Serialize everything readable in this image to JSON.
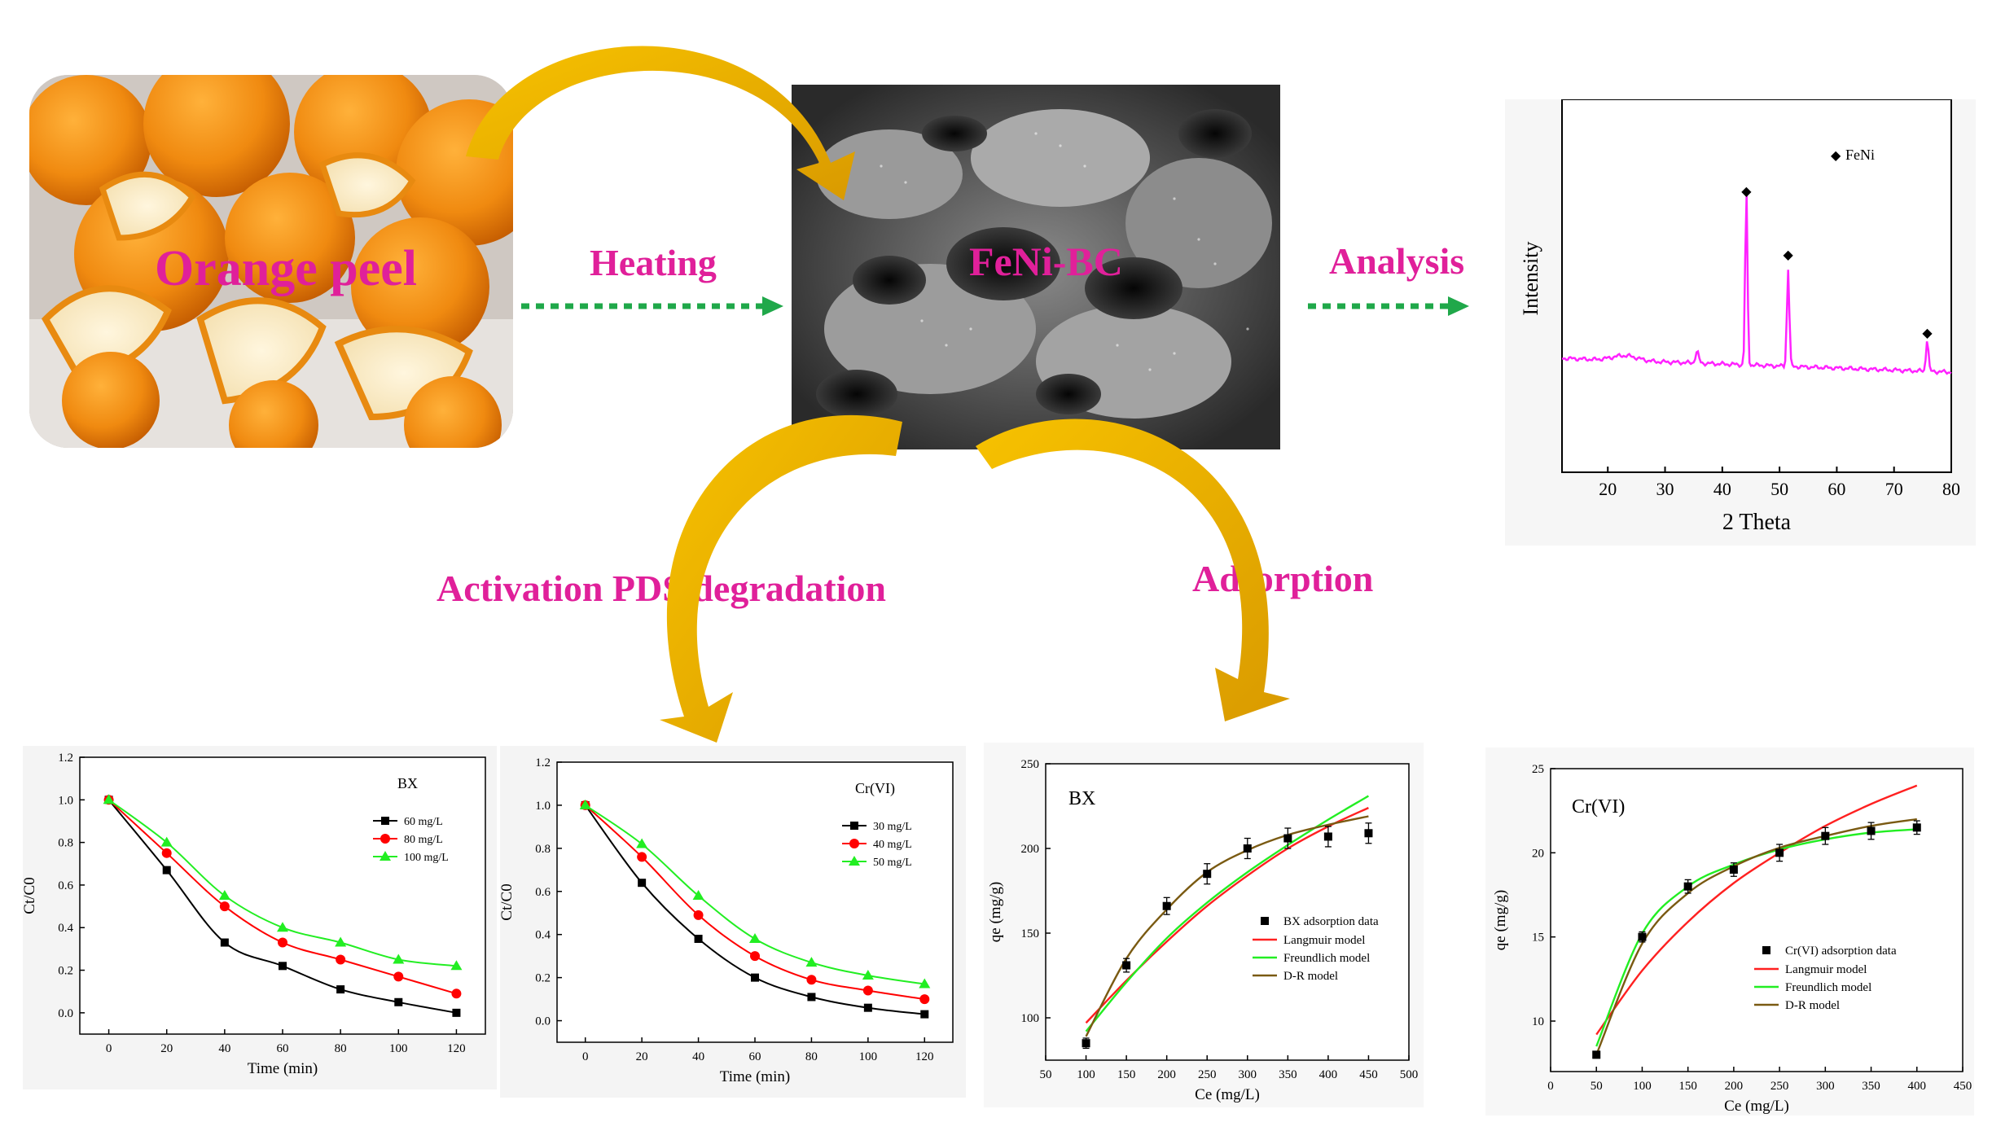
{
  "labels": {
    "orange_peel": "Orange peel",
    "heating": "Heating",
    "material": "FeNi-BC",
    "analysis": "Analysis",
    "activation": "Activation PDS degradation",
    "adsorption": "Adsorption"
  },
  "colors": {
    "label": "#e0209a",
    "arrow_arc": "#f0b400",
    "dotted_arrow": "#20a84a",
    "xrd_line": "#ff22ff"
  },
  "xrd": {
    "legend": "FeNi",
    "ylabel": "Intensity",
    "xlabel": "2 Theta",
    "xticks": [
      "20",
      "30",
      "40",
      "50",
      "60",
      "70",
      "80"
    ]
  },
  "chart_data": [
    {
      "type": "line",
      "id": "xrd",
      "xlabel": "2 Theta",
      "ylabel": "Intensity",
      "xlim": [
        12,
        80
      ],
      "peaks": [
        {
          "x": 44.2,
          "marker": "◆"
        },
        {
          "x": 51.5,
          "marker": "◆"
        },
        {
          "x": 75.8,
          "marker": "◆"
        }
      ],
      "legend": [
        "FeNi"
      ]
    },
    {
      "type": "line",
      "id": "bx-degradation",
      "title": "BX",
      "xlabel": "Time (min)",
      "ylabel": "Ct/C0",
      "xlim": [
        -10,
        130
      ],
      "ylim": [
        -0.1,
        1.2
      ],
      "xticks": [
        "0",
        "20",
        "40",
        "60",
        "80",
        "100",
        "120"
      ],
      "yticks": [
        "0.0",
        "0.2",
        "0.4",
        "0.6",
        "0.8",
        "1.0",
        "1.2"
      ],
      "x": [
        0,
        20,
        40,
        60,
        80,
        100,
        120
      ],
      "series": [
        {
          "name": "60 mg/L",
          "color": "#000000",
          "marker": "square",
          "values": [
            1.0,
            0.67,
            0.33,
            0.22,
            0.11,
            0.05,
            0.0
          ]
        },
        {
          "name": "80 mg/L",
          "color": "#ff0000",
          "marker": "circle",
          "values": [
            1.0,
            0.75,
            0.5,
            0.33,
            0.25,
            0.17,
            0.09
          ]
        },
        {
          "name": "100 mg/L",
          "color": "#22ee22",
          "marker": "triangle",
          "values": [
            1.0,
            0.8,
            0.55,
            0.4,
            0.33,
            0.25,
            0.22
          ]
        }
      ]
    },
    {
      "type": "line",
      "id": "cr-degradation",
      "title": "Cr(VI)",
      "xlabel": "Time (min)",
      "ylabel": "Ct/C0",
      "xlim": [
        -10,
        130
      ],
      "ylim": [
        -0.1,
        1.2
      ],
      "xticks": [
        "0",
        "20",
        "40",
        "60",
        "80",
        "100",
        "120"
      ],
      "yticks": [
        "0.0",
        "0.2",
        "0.4",
        "0.6",
        "0.8",
        "1.0",
        "1.2"
      ],
      "x": [
        0,
        20,
        40,
        60,
        80,
        100,
        120
      ],
      "series": [
        {
          "name": "30 mg/L",
          "color": "#000000",
          "marker": "square",
          "values": [
            1.0,
            0.64,
            0.38,
            0.2,
            0.11,
            0.06,
            0.03
          ]
        },
        {
          "name": "40 mg/L",
          "color": "#ff0000",
          "marker": "circle",
          "values": [
            1.0,
            0.76,
            0.49,
            0.3,
            0.19,
            0.14,
            0.1
          ]
        },
        {
          "name": "50 mg/L",
          "color": "#22ee22",
          "marker": "triangle",
          "values": [
            1.0,
            0.82,
            0.58,
            0.38,
            0.27,
            0.21,
            0.17
          ]
        }
      ]
    },
    {
      "type": "scatter",
      "id": "bx-adsorption",
      "title": "BX",
      "xlabel": "Ce (mg/L)",
      "ylabel": "qe (mg/g)",
      "xlim": [
        50,
        500
      ],
      "ylim": [
        75,
        250
      ],
      "xticks": [
        "50",
        "100",
        "150",
        "200",
        "250",
        "300",
        "350",
        "400",
        "450",
        "500"
      ],
      "yticks": [
        "100",
        "150",
        "200",
        "250"
      ],
      "points": {
        "name": "BX adsorption data",
        "x": [
          100,
          150,
          200,
          250,
          300,
          350,
          400,
          450
        ],
        "y": [
          85,
          131,
          166,
          185,
          200,
          206,
          207,
          209
        ],
        "err": [
          3,
          4,
          5,
          6,
          6,
          6,
          6,
          6
        ]
      },
      "models": [
        {
          "name": "Langmuir model",
          "color": "#ff2020",
          "x": [
            100,
            150,
            200,
            250,
            300,
            350,
            400,
            450
          ],
          "y": [
            97,
            122,
            145,
            166,
            184,
            200,
            213,
            224
          ]
        },
        {
          "name": "Freundlich model",
          "color": "#22ee22",
          "x": [
            100,
            150,
            200,
            250,
            300,
            350,
            400,
            450
          ],
          "y": [
            92,
            121,
            147,
            168,
            186,
            202,
            217,
            231
          ]
        },
        {
          "name": "D-R model",
          "color": "#7a5a12",
          "x": [
            100,
            150,
            200,
            250,
            300,
            350,
            400,
            450
          ],
          "y": [
            89,
            135,
            164,
            186,
            199,
            208,
            214,
            219
          ]
        }
      ]
    },
    {
      "type": "scatter",
      "id": "cr-adsorption",
      "title": "Cr(VI)",
      "xlabel": "Ce (mg/L)",
      "ylabel": "qe (mg/g)",
      "xlim": [
        0,
        450
      ],
      "ylim": [
        7,
        25
      ],
      "xticks": [
        "0",
        "50",
        "100",
        "150",
        "200",
        "250",
        "300",
        "350",
        "400",
        "450"
      ],
      "yticks": [
        "10",
        "15",
        "20",
        "25"
      ],
      "points": {
        "name": "Cr(VI) adsorption data",
        "x": [
          50,
          100,
          150,
          200,
          250,
          300,
          350,
          400
        ],
        "y": [
          8.0,
          15.0,
          18.0,
          19.0,
          20.0,
          21.0,
          21.3,
          21.5
        ],
        "err": [
          0.2,
          0.3,
          0.4,
          0.4,
          0.5,
          0.5,
          0.5,
          0.4
        ]
      },
      "models": [
        {
          "name": "Langmuir model",
          "color": "#ff2020",
          "x": [
            50,
            100,
            150,
            200,
            250,
            300,
            350,
            400
          ],
          "y": [
            9.2,
            13.0,
            15.9,
            18.2,
            20.0,
            21.6,
            22.9,
            24.0
          ]
        },
        {
          "name": "Freundlich model",
          "color": "#22ee22",
          "x": [
            50,
            100,
            150,
            200,
            250,
            300,
            350,
            400
          ],
          "y": [
            8.5,
            15.2,
            18.0,
            19.3,
            20.2,
            20.8,
            21.2,
            21.4
          ]
        },
        {
          "name": "D-R model",
          "color": "#7a5a12",
          "x": [
            50,
            100,
            150,
            200,
            250,
            300,
            350,
            400
          ],
          "y": [
            8.0,
            14.6,
            17.6,
            19.2,
            20.3,
            21.0,
            21.6,
            22.0
          ]
        }
      ]
    }
  ]
}
